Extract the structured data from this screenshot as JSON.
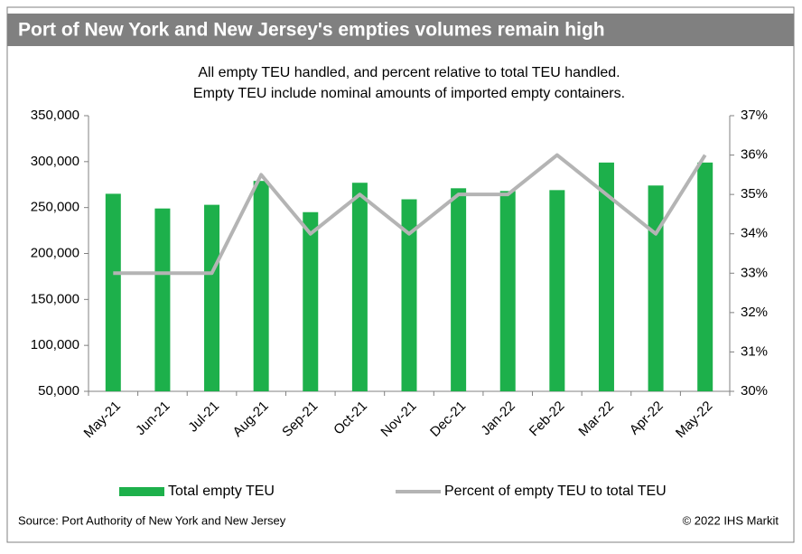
{
  "chart_data": {
    "type": "bar",
    "title": "Port of New York and New Jersey's empties volumes remain high",
    "subtitle": [
      "All empty TEU handled, and percent relative to total TEU handled.",
      "Empty TEU include nominal amounts of imported empty containers."
    ],
    "categories": [
      "May-21",
      "Jun-21",
      "Jul-21",
      "Aug-21",
      "Sep-21",
      "Oct-21",
      "Nov-21",
      "Dec-21",
      "Jan-22",
      "Feb-22",
      "Mar-22",
      "Apr-22",
      "May-22"
    ],
    "series": [
      {
        "name": "Total empty TEU",
        "type": "bar",
        "color": "#1db04b",
        "values": [
          265000,
          249000,
          253000,
          279000,
          245000,
          277000,
          259000,
          271000,
          268000,
          269000,
          299000,
          274000,
          299000
        ]
      },
      {
        "name": "Percent of empty TEU to total TEU",
        "type": "line",
        "axis": "y2",
        "color": "#b4b4b4",
        "values": [
          33,
          33,
          33,
          35.5,
          34,
          35,
          34,
          35,
          35,
          36,
          35,
          34,
          36
        ]
      }
    ],
    "ylim": [
      50000,
      350000
    ],
    "yticks": [
      {
        "value": 50000,
        "label": "50,000"
      },
      {
        "value": 100000,
        "label": "100,000"
      },
      {
        "value": 150000,
        "label": "150,000"
      },
      {
        "value": 200000,
        "label": "200,000"
      },
      {
        "value": 250000,
        "label": "250,000"
      },
      {
        "value": 300000,
        "label": "300,000"
      },
      {
        "value": 350000,
        "label": "350,000"
      }
    ],
    "y2lim": [
      30,
      37
    ],
    "y2ticks": [
      {
        "value": 30,
        "label": "30%"
      },
      {
        "value": 31,
        "label": "31%"
      },
      {
        "value": 32,
        "label": "32%"
      },
      {
        "value": 33,
        "label": "33%"
      },
      {
        "value": 34,
        "label": "34%"
      },
      {
        "value": 35,
        "label": "35%"
      },
      {
        "value": 36,
        "label": "36%"
      },
      {
        "value": 37,
        "label": "37%"
      }
    ],
    "grid": false,
    "legend": "bottom",
    "source": "Source: Port Authority of New York and New Jersey",
    "copyright": "© 2022 IHS Markit"
  }
}
